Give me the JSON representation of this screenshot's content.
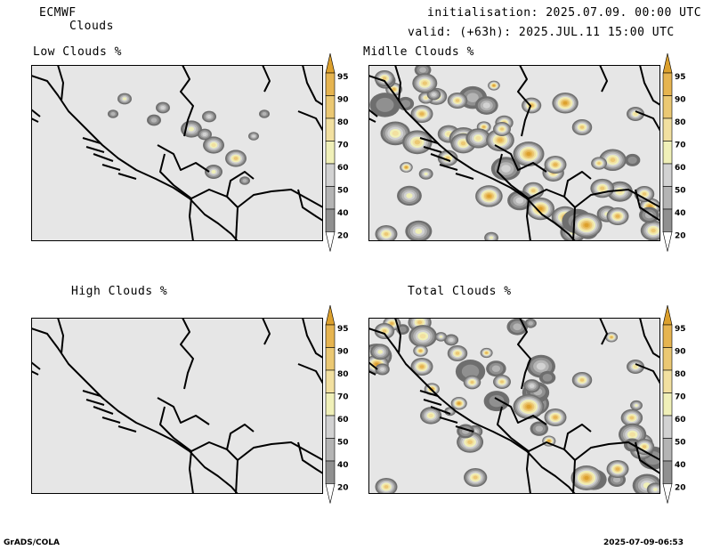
{
  "header": {
    "model": "ECMWF",
    "product": "Clouds",
    "init": "initialisation: 2025.07.09. 00:00 UTC",
    "valid": "valid: (+63h): 2025.JUL.11 15:00 UTC"
  },
  "panels": {
    "low": "Low Clouds %",
    "mid": "Midlle Clouds %",
    "high": "High Clouds %",
    "total": "Total Clouds %"
  },
  "colorbar": {
    "levels": [
      "20",
      "40",
      "50",
      "60",
      "70",
      "80",
      "90",
      "95"
    ],
    "colors": [
      "#6e6e6e",
      "#909090",
      "#b4b4b4",
      "#d2d2d2",
      "#f0f0b8",
      "#f2e0a0",
      "#ebc873",
      "#e6b450",
      "#dca02d"
    ]
  },
  "footer": {
    "left": "GrADS/COLA",
    "right": "2025-07-09-06:53"
  }
}
